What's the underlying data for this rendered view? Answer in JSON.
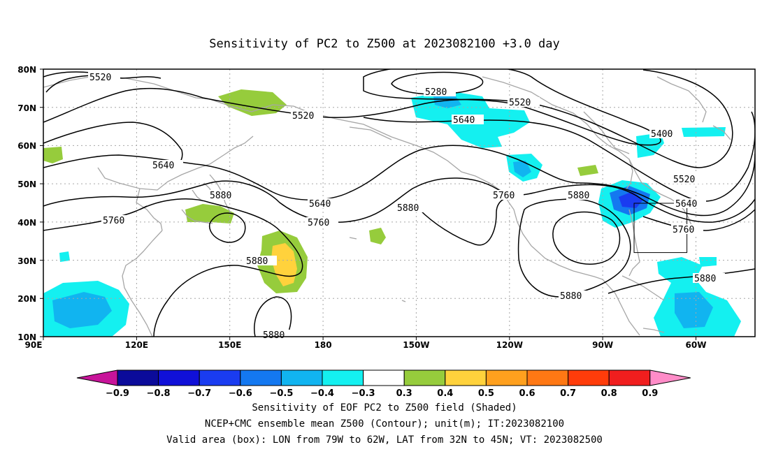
{
  "title": "Sensitivity of PC2 to Z500 at 2023082100 +3.0 day",
  "map": {
    "lat_labels": [
      "80N",
      "70N",
      "60N",
      "50N",
      "40N",
      "30N",
      "20N",
      "10N"
    ],
    "lon_labels": [
      "90E",
      "120E",
      "150E",
      "180",
      "150W",
      "120W",
      "90W",
      "60W"
    ],
    "grid": "dotted",
    "valid_box": {
      "lon_range": [
        "79W",
        "62W"
      ],
      "lat_range": [
        "32N",
        "45N"
      ]
    }
  },
  "contours": {
    "labels": [
      {
        "id": "c1",
        "text": "5520"
      },
      {
        "id": "c2",
        "text": "5520"
      },
      {
        "id": "c3",
        "text": "5280"
      },
      {
        "id": "c4",
        "text": "5520"
      },
      {
        "id": "c5",
        "text": "5640"
      },
      {
        "id": "c6",
        "text": "5400"
      },
      {
        "id": "c7",
        "text": "5640"
      },
      {
        "id": "c8",
        "text": "5880"
      },
      {
        "id": "c9",
        "text": "5640"
      },
      {
        "id": "c10",
        "text": "5760"
      },
      {
        "id": "c11",
        "text": "5760"
      },
      {
        "id": "c12",
        "text": "5880"
      },
      {
        "id": "c13",
        "text": "5760"
      },
      {
        "id": "c14",
        "text": "5880"
      },
      {
        "id": "c15",
        "text": "5520"
      },
      {
        "id": "c16",
        "text": "5640"
      },
      {
        "id": "c17",
        "text": "5760"
      },
      {
        "id": "c18",
        "text": "5880"
      },
      {
        "id": "c19",
        "text": "5880"
      },
      {
        "id": "c20",
        "text": "5880"
      },
      {
        "id": "c21",
        "text": "5880"
      }
    ]
  },
  "colorbar": {
    "labels": [
      "−0.9",
      "−0.8",
      "−0.7",
      "−0.6",
      "−0.5",
      "−0.4",
      "−0.3",
      "0.3",
      "0.4",
      "0.5",
      "0.6",
      "0.7",
      "0.8",
      "0.9"
    ],
    "colors": [
      "#0b0b9a",
      "#1010d8",
      "#1a3cf0",
      "#1478f0",
      "#11b4f0",
      "#14f0f0",
      "#ffffff",
      "#96cc3c",
      "#ffd23c",
      "#ffa01e",
      "#ff7814",
      "#ff3c0a",
      "#f01e1e"
    ],
    "low_end_color": "#c8149a",
    "high_end_color": "#ff8cc8"
  },
  "footer": {
    "line1": "Sensitivity of EOF PC2 to Z500 field (Shaded)",
    "line2": "NCEP+CMC ensemble mean Z500 (Contour); unit(m); IT:2023082100",
    "line3": "Valid area (box): LON from 79W to 62W, LAT from 32N to 45N; VT: 2023082500"
  }
}
